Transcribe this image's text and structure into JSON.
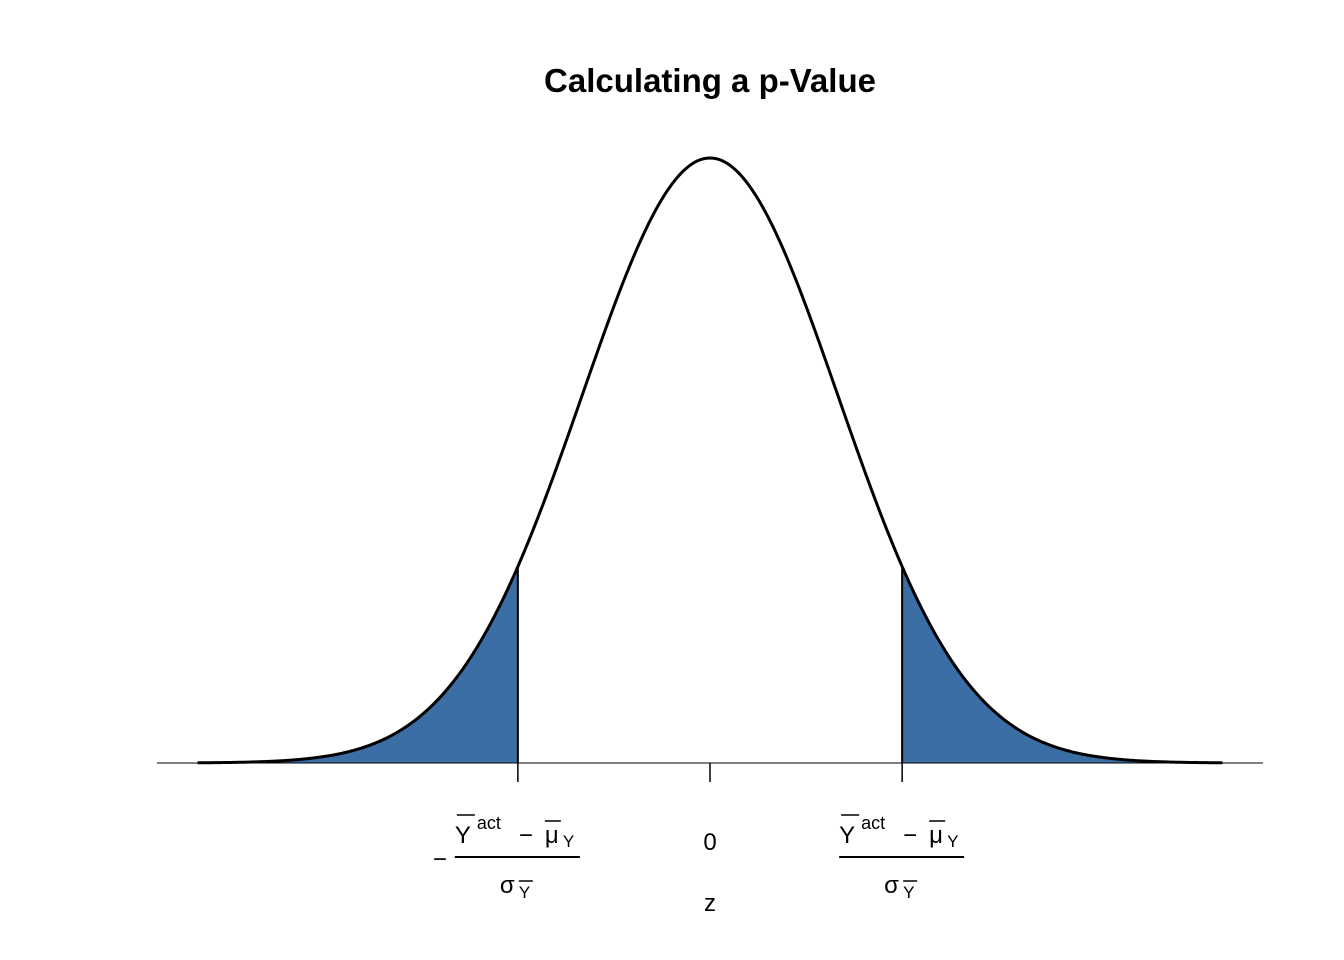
{
  "chart_data": {
    "type": "area",
    "title": "Calculating a p-Value",
    "xlabel": "z",
    "ylabel": "",
    "xlim": [
      -4,
      4
    ],
    "distribution": "standard normal density",
    "shaded_regions": [
      {
        "from": -4,
        "to": -1.5
      },
      {
        "from": 1.5,
        "to": 4
      }
    ],
    "critical_value": 1.5,
    "ticks": [
      {
        "value": -1.5,
        "label": {
          "sign": "−",
          "num_main": "Y",
          "num_sup": "act",
          "num_minus": "−",
          "num_mu": "μ",
          "num_sub": "Y",
          "den_main": "σ",
          "den_sub": "Y"
        }
      },
      {
        "value": 0,
        "label": {
          "plain": "0"
        }
      },
      {
        "value": 1.5,
        "label": {
          "sign": "",
          "num_main": "Y",
          "num_sup": "act",
          "num_minus": "−",
          "num_mu": "μ",
          "num_sub": "Y",
          "den_main": "σ",
          "den_sub": "Y"
        }
      }
    ],
    "fill_color": "#3A6EA5",
    "line_color": "#000000",
    "grid": false,
    "y_axis_shown": false
  }
}
